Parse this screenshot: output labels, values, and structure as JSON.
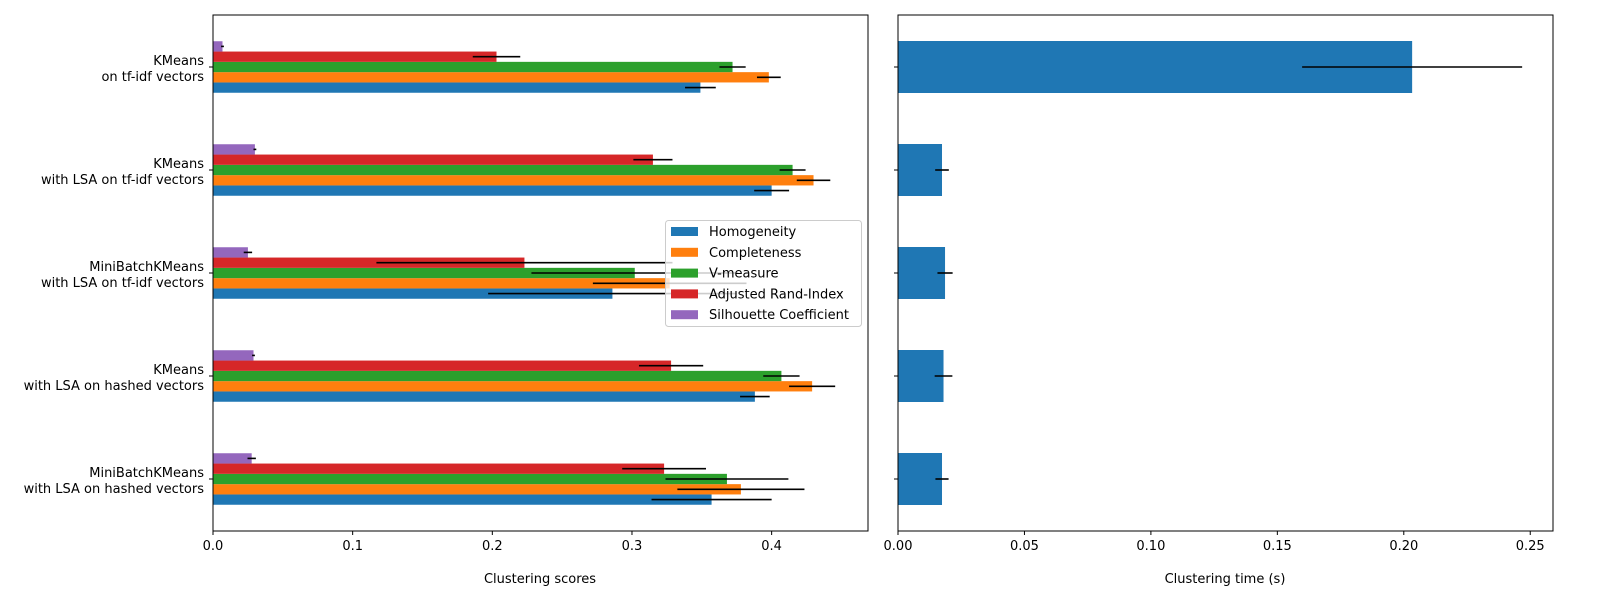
{
  "chart_data": [
    {
      "type": "bar",
      "orientation": "horizontal",
      "xlabel": "Clustering scores",
      "xlim": [
        0,
        0.469
      ],
      "xticks": [
        "0.0",
        "0.1",
        "0.2",
        "0.3",
        "0.4"
      ],
      "categories": [
        [
          "KMeans",
          "on tf-idf vectors"
        ],
        [
          "KMeans",
          "with LSA on tf-idf vectors"
        ],
        [
          "MiniBatchKMeans",
          "with LSA on tf-idf vectors"
        ],
        [
          "KMeans",
          "with LSA on hashed vectors"
        ],
        [
          "MiniBatchKMeans",
          "with LSA on hashed vectors"
        ]
      ],
      "legend_position": "center-right",
      "series": [
        {
          "name": "Homogeneity",
          "color": "#1f77b4",
          "values": [
            0.349,
            0.4,
            0.286,
            0.388,
            0.357
          ],
          "errors": [
            0.011,
            0.0125,
            0.089,
            0.0106,
            0.043
          ]
        },
        {
          "name": "Completeness",
          "color": "#ff7f0e",
          "values": [
            0.398,
            0.43,
            0.327,
            0.429,
            0.378
          ],
          "errors": [
            0.0085,
            0.012,
            0.055,
            0.0165,
            0.0455
          ]
        },
        {
          "name": "V-measure",
          "color": "#2ca02c",
          "values": [
            0.372,
            0.415,
            0.302,
            0.407,
            0.368
          ],
          "errors": [
            0.0094,
            0.0093,
            0.074,
            0.013,
            0.044
          ]
        },
        {
          "name": "Adjusted Rand-Index",
          "color": "#d62728",
          "values": [
            0.203,
            0.315,
            0.223,
            0.328,
            0.323
          ],
          "errors": [
            0.017,
            0.014,
            0.106,
            0.023,
            0.03
          ]
        },
        {
          "name": "Silhouette Coefficient",
          "color": "#9467bd",
          "values": [
            0.0068,
            0.03,
            0.025,
            0.029,
            0.0277
          ],
          "errors": [
            0.001,
            0.001,
            0.003,
            0.001,
            0.003
          ]
        }
      ]
    },
    {
      "type": "bar",
      "orientation": "horizontal",
      "xlabel": "Clustering time (s)",
      "xlim": [
        0,
        0.259
      ],
      "xticks": [
        "0.00",
        "0.05",
        "0.10",
        "0.15",
        "0.20",
        "0.25"
      ],
      "color": "#1f77b4",
      "values": [
        0.2033,
        0.0174,
        0.0186,
        0.018,
        0.0174
      ],
      "errors": [
        0.0435,
        0.0027,
        0.003,
        0.0035,
        0.0026
      ]
    }
  ]
}
